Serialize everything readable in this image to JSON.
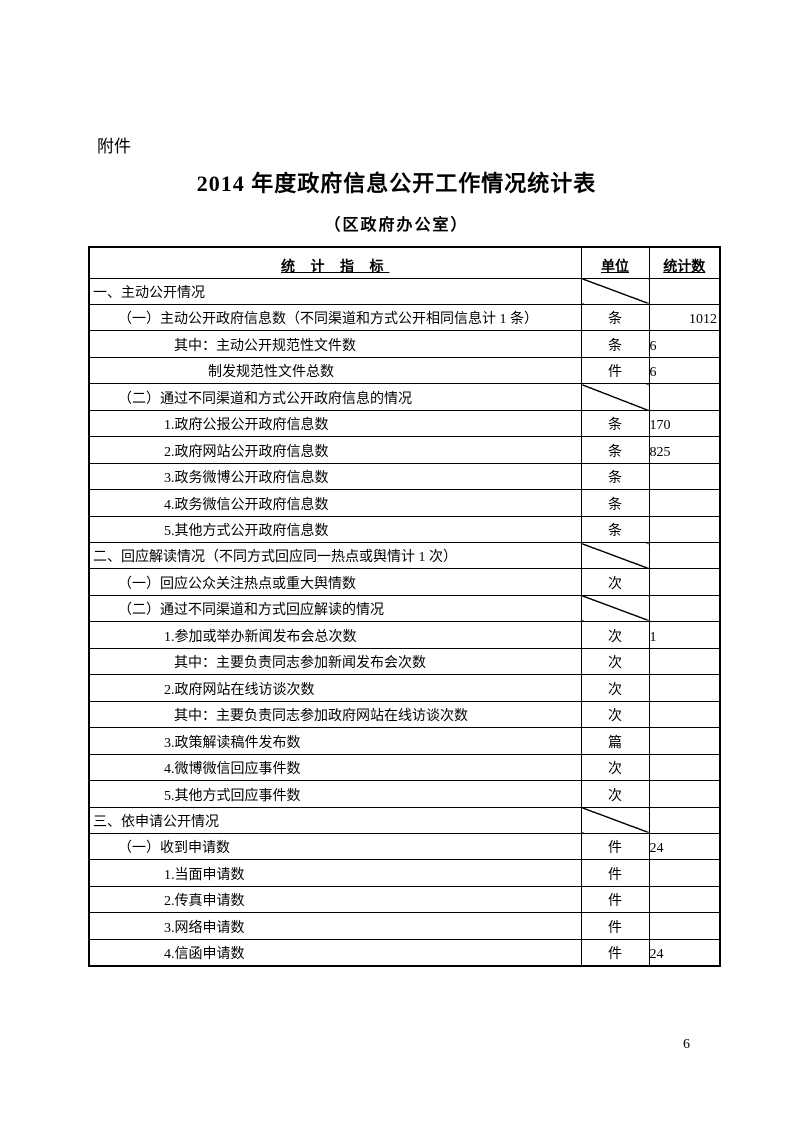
{
  "page": {
    "attachment_label": "附件",
    "title": "2014 年度政府信息公开工作情况统计表",
    "subtitle": "（区政府办公室）",
    "page_number": "6"
  },
  "table": {
    "headers": {
      "indicator": "统 计 指 标",
      "unit": "单位",
      "count": "统计数"
    },
    "rows": [
      {
        "label": "一、主动公开情况",
        "level": 0,
        "slash": true,
        "unit": "",
        "count": ""
      },
      {
        "label": "（一）主动公开政府信息数（不同渠道和方式公开相同信息计 1 条）",
        "level": 1,
        "slash": false,
        "unit": "条",
        "count": "1012",
        "align": "right"
      },
      {
        "label": "其中：主动公开规范性文件数",
        "level": 3,
        "slash": false,
        "unit": "条",
        "count": "6"
      },
      {
        "label": "制发规范性文件总数",
        "level": 4,
        "slash": false,
        "unit": "件",
        "count": "6"
      },
      {
        "label": "（二）通过不同渠道和方式公开政府信息的情况",
        "level": 1,
        "slash": true,
        "unit": "",
        "count": ""
      },
      {
        "label": "1.政府公报公开政府信息数",
        "level": 2,
        "slash": false,
        "unit": "条",
        "count": "170"
      },
      {
        "label": "2.政府网站公开政府信息数",
        "level": 2,
        "slash": false,
        "unit": "条",
        "count": "825"
      },
      {
        "label": "3.政务微博公开政府信息数",
        "level": 2,
        "slash": false,
        "unit": "条",
        "count": ""
      },
      {
        "label": "4.政务微信公开政府信息数",
        "level": 2,
        "slash": false,
        "unit": "条",
        "count": ""
      },
      {
        "label": "5.其他方式公开政府信息数",
        "level": 2,
        "slash": false,
        "unit": "条",
        "count": ""
      },
      {
        "label": "二、回应解读情况（不同方式回应同一热点或舆情计 1 次）",
        "level": 0,
        "slash": true,
        "unit": "",
        "count": ""
      },
      {
        "label": "（一）回应公众关注热点或重大舆情数",
        "level": 1,
        "slash": false,
        "unit": "次",
        "count": ""
      },
      {
        "label": "（二）通过不同渠道和方式回应解读的情况",
        "level": 1,
        "slash": true,
        "unit": "",
        "count": ""
      },
      {
        "label": "1.参加或举办新闻发布会总次数",
        "level": 2,
        "slash": false,
        "unit": "次",
        "count": "1"
      },
      {
        "label": "其中：主要负责同志参加新闻发布会次数",
        "level": 3,
        "slash": false,
        "unit": "次",
        "count": ""
      },
      {
        "label": "2.政府网站在线访谈次数",
        "level": 2,
        "slash": false,
        "unit": "次",
        "count": ""
      },
      {
        "label": "其中：主要负责同志参加政府网站在线访谈次数",
        "level": 3,
        "slash": false,
        "unit": "次",
        "count": ""
      },
      {
        "label": "3.政策解读稿件发布数",
        "level": 2,
        "slash": false,
        "unit": "篇",
        "count": ""
      },
      {
        "label": "4.微博微信回应事件数",
        "level": 2,
        "slash": false,
        "unit": "次",
        "count": ""
      },
      {
        "label": "5.其他方式回应事件数",
        "level": 2,
        "slash": false,
        "unit": "次",
        "count": ""
      },
      {
        "label": "三、依申请公开情况",
        "level": 0,
        "slash": true,
        "unit": "",
        "count": ""
      },
      {
        "label": "（一）收到申请数",
        "level": 1,
        "slash": false,
        "unit": "件",
        "count": "24"
      },
      {
        "label": "1.当面申请数",
        "level": 2,
        "slash": false,
        "unit": "件",
        "count": ""
      },
      {
        "label": "2.传真申请数",
        "level": 2,
        "slash": false,
        "unit": "件",
        "count": ""
      },
      {
        "label": "3.网络申请数",
        "level": 2,
        "slash": false,
        "unit": "件",
        "count": ""
      },
      {
        "label": "4.信函申请数",
        "level": 2,
        "slash": false,
        "unit": "件",
        "count": "24"
      }
    ]
  }
}
